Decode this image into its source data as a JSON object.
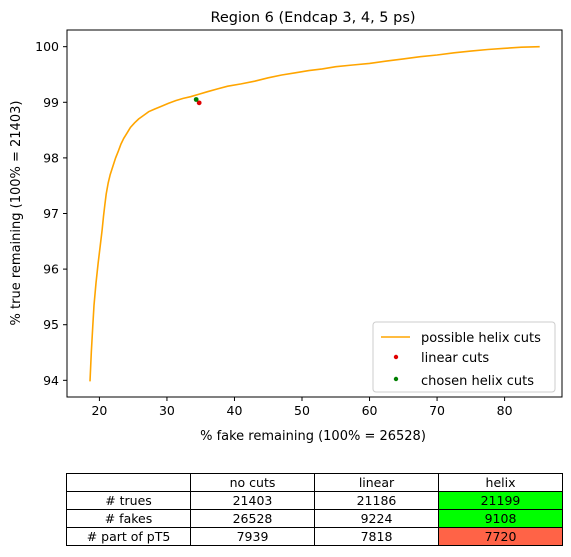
{
  "chart_data": {
    "type": "line",
    "title": "Region 6 (Endcap 3, 4, 5 ps)",
    "xlabel": "% fake remaining (100% = 26528)",
    "ylabel": "% true remaining (100% = 21403)",
    "xlim": [
      15.2,
      88.5
    ],
    "ylim": [
      93.7,
      100.3
    ],
    "xticks": [
      20,
      30,
      40,
      50,
      60,
      70,
      80
    ],
    "yticks": [
      94,
      95,
      96,
      97,
      98,
      99,
      100
    ],
    "grid": false,
    "legend_position": "lower right",
    "series": [
      {
        "name": "possible helix cuts",
        "kind": "line",
        "color": "#FFA500",
        "x": [
          18.6,
          18.8,
          19.0,
          19.2,
          19.5,
          19.8,
          20.1,
          20.4,
          20.6,
          20.8,
          21.0,
          21.3,
          21.6,
          22.0,
          22.4,
          22.8,
          23.2,
          23.6,
          24.1,
          24.6,
          25.2,
          25.8,
          26.5,
          27.3,
          28.2,
          29.2,
          30.2,
          31.3,
          32.4,
          33.5,
          34.6,
          36.0,
          37.5,
          39.0,
          41.0,
          43.0,
          45.0,
          47.0,
          49.0,
          51.0,
          53.0,
          55.0,
          57.5,
          60.0,
          62.5,
          65.0,
          67.5,
          70.0,
          72.5,
          75.0,
          77.5,
          80.0,
          82.5,
          85.2
        ],
        "y": [
          93.98,
          94.5,
          94.95,
          95.35,
          95.75,
          96.1,
          96.4,
          96.7,
          96.95,
          97.15,
          97.35,
          97.55,
          97.7,
          97.85,
          98.0,
          98.12,
          98.25,
          98.35,
          98.45,
          98.55,
          98.63,
          98.7,
          98.76,
          98.83,
          98.88,
          98.93,
          98.98,
          99.03,
          99.07,
          99.1,
          99.14,
          99.19,
          99.24,
          99.29,
          99.33,
          99.38,
          99.44,
          99.49,
          99.53,
          99.57,
          99.6,
          99.64,
          99.67,
          99.7,
          99.74,
          99.78,
          99.82,
          99.85,
          99.89,
          99.92,
          99.95,
          99.97,
          99.99,
          100.0
        ]
      },
      {
        "name": "linear cuts",
        "kind": "scatter",
        "color": "#E00000",
        "x": [
          34.77
        ],
        "y": [
          98.99
        ]
      },
      {
        "name": "chosen helix cuts",
        "kind": "scatter",
        "color": "#007F00",
        "x": [
          34.33
        ],
        "y": [
          99.05
        ]
      }
    ]
  },
  "table": {
    "columns": [
      "",
      "no cuts",
      "linear",
      "helix"
    ],
    "rows": [
      {
        "label": "# trues",
        "values": [
          "21403",
          "21186",
          "21199"
        ],
        "helix_color": "#00FF00"
      },
      {
        "label": "# fakes",
        "values": [
          "26528",
          "9224",
          "9108"
        ],
        "helix_color": "#00FF00"
      },
      {
        "label": "# part of pT5",
        "values": [
          "7939",
          "7818",
          "7720"
        ],
        "helix_color": "#FF6347"
      }
    ]
  }
}
